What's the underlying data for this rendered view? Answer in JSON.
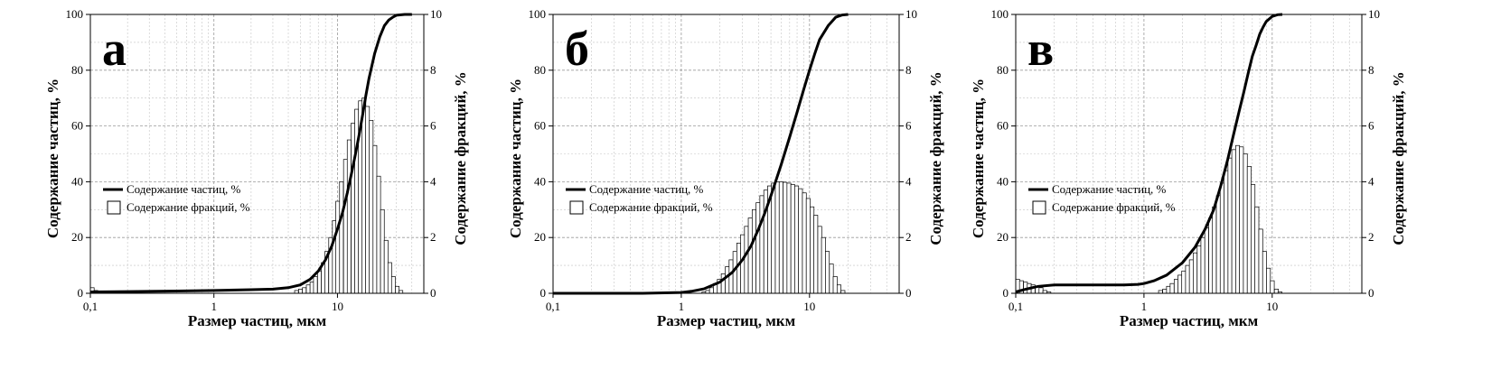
{
  "chart_data": [
    {
      "type": "bar",
      "panel_label": "а",
      "xlabel": "Размер частиц, мкм",
      "ylabel_left": "Содержание частиц, %",
      "ylabel_right": "Содержание фракций, %",
      "x_scale": "log",
      "xlim": [
        0.1,
        50
      ],
      "ylim_left": [
        0,
        100
      ],
      "ylim_right": [
        0,
        10
      ],
      "x_tick_labels": [
        {
          "value": 0.1,
          "label": "0,1"
        },
        {
          "value": 1,
          "label": "1"
        },
        {
          "value": 10,
          "label": "10"
        }
      ],
      "y_left_ticks": [
        0,
        20,
        40,
        60,
        80,
        100
      ],
      "y_right_ticks": [
        0,
        2,
        4,
        6,
        8,
        10
      ],
      "grid": true,
      "legend": {
        "placement": "left-middle",
        "entries": [
          "Содержание частиц, %",
          "Содержание фракций, %"
        ]
      },
      "series": [
        {
          "name": "Содержание частиц, %",
          "kind": "line",
          "axis": "left",
          "x": [
            0.1,
            0.2,
            0.5,
            1,
            2,
            3,
            4,
            5,
            6,
            7,
            8,
            9,
            10,
            11,
            12,
            13,
            14,
            15,
            16,
            17,
            18,
            20,
            22,
            24,
            26,
            28,
            30,
            35,
            40
          ],
          "y": [
            0.5,
            0.6,
            0.8,
            1,
            1.3,
            1.5,
            2,
            3,
            5,
            8,
            12,
            17,
            23,
            29,
            36,
            43,
            50,
            57,
            64,
            71,
            77,
            86,
            92,
            96,
            98,
            99,
            99.7,
            100,
            100
          ]
        },
        {
          "name": "Содержание фракций, %",
          "kind": "bar",
          "axis": "right",
          "x": [
            0.1,
            0.107,
            4.5,
            4.85,
            5.2,
            5.6,
            6.0,
            6.4,
            6.9,
            7.4,
            7.9,
            8.5,
            9.1,
            9.7,
            10.4,
            11.2,
            12.0,
            12.9,
            13.8,
            14.8,
            15.8,
            16.9,
            18.1,
            19.4,
            20.8,
            22.3,
            23.9,
            25.6,
            27.4,
            29.4,
            31.5
          ],
          "y": [
            0.2,
            0.1,
            0.1,
            0.15,
            0.2,
            0.3,
            0.4,
            0.6,
            0.8,
            1.1,
            1.5,
            2.0,
            2.6,
            3.3,
            4.0,
            4.8,
            5.5,
            6.1,
            6.6,
            6.9,
            7.0,
            6.7,
            6.2,
            5.3,
            4.2,
            3.0,
            1.9,
            1.1,
            0.6,
            0.25,
            0.1
          ]
        }
      ]
    },
    {
      "type": "bar",
      "panel_label": "б",
      "xlabel": "Размер частиц, мкм",
      "ylabel_left": "Содержание частиц, %",
      "ylabel_right": "Содержание фракций, %",
      "x_scale": "log",
      "xlim": [
        0.1,
        50
      ],
      "ylim_left": [
        0,
        100
      ],
      "ylim_right": [
        0,
        10
      ],
      "x_tick_labels": [
        {
          "value": 0.1,
          "label": "0,1"
        },
        {
          "value": 1,
          "label": "1"
        },
        {
          "value": 10,
          "label": "10"
        }
      ],
      "y_left_ticks": [
        0,
        20,
        40,
        60,
        80,
        100
      ],
      "y_right_ticks": [
        0,
        2,
        4,
        6,
        8,
        10
      ],
      "grid": true,
      "legend": {
        "placement": "left-middle",
        "entries": [
          "Содержание частиц, %",
          "Содержание фракций, %"
        ]
      },
      "series": [
        {
          "name": "Содержание частиц, %",
          "kind": "line",
          "axis": "left",
          "x": [
            0.1,
            0.5,
            1,
            1.2,
            1.5,
            2,
            2.5,
            3,
            3.5,
            4,
            4.5,
            5,
            6,
            7,
            8,
            9,
            10,
            11,
            12,
            14,
            16,
            18,
            20
          ],
          "y": [
            0,
            0,
            0.3,
            0.7,
            1.6,
            4,
            7.5,
            12,
            17,
            23,
            29,
            35,
            46,
            56,
            65,
            73,
            80,
            86,
            91,
            96,
            99,
            99.8,
            100
          ]
        },
        {
          "name": "Содержание фракций, %",
          "kind": "bar",
          "axis": "right",
          "x": [
            1.45,
            1.55,
            1.66,
            1.78,
            1.91,
            2.05,
            2.2,
            2.36,
            2.53,
            2.71,
            2.9,
            3.11,
            3.33,
            3.57,
            3.83,
            4.1,
            4.4,
            4.71,
            5.05,
            5.41,
            5.8,
            6.22,
            6.67,
            7.15,
            7.66,
            8.21,
            8.8,
            9.43,
            10.1,
            10.8,
            11.6,
            12.4,
            13.3,
            14.3,
            15.3,
            16.4,
            17.6
          ],
          "y": [
            0.05,
            0.1,
            0.2,
            0.35,
            0.5,
            0.7,
            0.95,
            1.2,
            1.5,
            1.8,
            2.1,
            2.4,
            2.7,
            3.0,
            3.25,
            3.5,
            3.7,
            3.85,
            3.95,
            4.0,
            4.0,
            3.98,
            3.95,
            3.9,
            3.85,
            3.75,
            3.6,
            3.4,
            3.1,
            2.8,
            2.4,
            2.0,
            1.5,
            1.05,
            0.6,
            0.3,
            0.1
          ]
        }
      ]
    },
    {
      "type": "bar",
      "panel_label": "в",
      "xlabel": "Размер частиц, мкм",
      "ylabel_left": "Содержание частиц, %",
      "ylabel_right": "Содержание фракций, %",
      "x_scale": "log",
      "xlim": [
        0.1,
        50
      ],
      "ylim_left": [
        0,
        100
      ],
      "ylim_right": [
        0,
        10
      ],
      "x_tick_labels": [
        {
          "value": 0.1,
          "label": "0,1"
        },
        {
          "value": 1,
          "label": "1"
        },
        {
          "value": 10,
          "label": "10"
        }
      ],
      "y_left_ticks": [
        0,
        20,
        40,
        60,
        80,
        100
      ],
      "y_right_ticks": [
        0,
        2,
        4,
        6,
        8,
        10
      ],
      "grid": true,
      "legend": {
        "placement": "left-middle",
        "entries": [
          "Содержание частиц, %",
          "Содержание фракций, %"
        ]
      },
      "series": [
        {
          "name": "Содержание частиц, %",
          "kind": "line",
          "axis": "left",
          "x": [
            0.1,
            0.12,
            0.15,
            0.2,
            0.3,
            0.5,
            0.7,
            0.9,
            1,
            1.2,
            1.5,
            2,
            2.5,
            3,
            3.5,
            4,
            4.5,
            5,
            5.5,
            6,
            6.5,
            7,
            7.5,
            8,
            8.5,
            9,
            10,
            11,
            12
          ],
          "y": [
            0.5,
            1.5,
            2.5,
            3,
            3,
            3,
            3,
            3.2,
            3.5,
            4.5,
            6.5,
            11,
            16.5,
            23,
            30,
            39,
            48,
            57,
            65,
            72,
            79,
            85,
            89,
            93,
            95.5,
            97.5,
            99.3,
            99.9,
            100
          ]
        },
        {
          "name": "Содержание фракций, %",
          "kind": "bar",
          "axis": "right",
          "x": [
            0.1,
            0.107,
            0.115,
            0.123,
            0.132,
            0.142,
            0.152,
            0.163,
            0.175,
            1.3,
            1.4,
            1.5,
            1.6,
            1.72,
            1.84,
            1.97,
            2.11,
            2.26,
            2.42,
            2.6,
            2.78,
            2.98,
            3.2,
            3.42,
            3.67,
            3.93,
            4.21,
            4.52,
            4.84,
            5.19,
            5.56,
            5.96,
            6.39,
            6.84,
            7.33,
            7.86,
            8.42,
            9.02,
            9.67,
            10.4,
            11.1
          ],
          "y": [
            0.5,
            0.45,
            0.4,
            0.35,
            0.3,
            0.25,
            0.2,
            0.1,
            0.05,
            0.1,
            0.15,
            0.25,
            0.35,
            0.5,
            0.65,
            0.8,
            1.0,
            1.2,
            1.45,
            1.7,
            2.0,
            2.35,
            2.7,
            3.1,
            3.5,
            3.95,
            4.4,
            4.85,
            5.15,
            5.3,
            5.25,
            5.0,
            4.55,
            3.9,
            3.1,
            2.3,
            1.5,
            0.9,
            0.45,
            0.15,
            0.05
          ]
        }
      ]
    }
  ]
}
